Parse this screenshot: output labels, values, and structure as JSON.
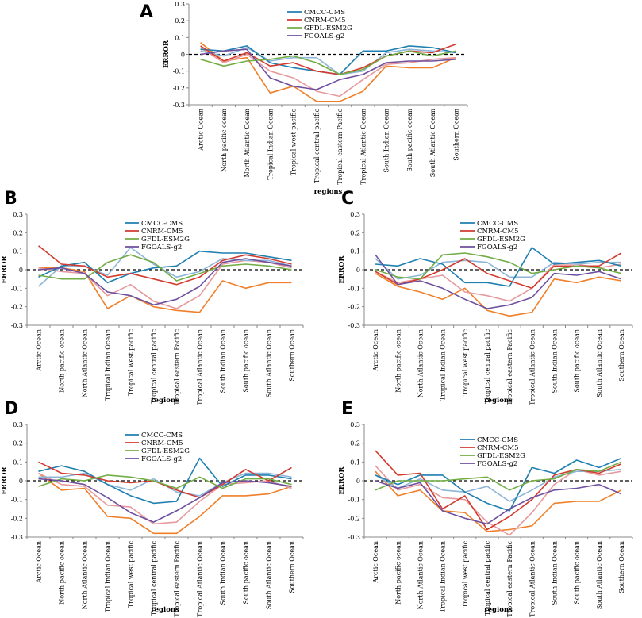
{
  "chart_data": [
    {
      "panel": "A",
      "type": "line",
      "xlabel": "regions",
      "ylabel": "ERROR",
      "ylim": [
        -0.3,
        0.3
      ],
      "yticks": [
        "0.3",
        "0.2",
        "0.1",
        "0",
        "-0.1",
        "-0.2",
        "-0.3"
      ],
      "categories": [
        "Arctic Ocean",
        "North pacific ocean",
        "North Atlantic Ocean",
        "Tropical Indian Ocean",
        "Tropical west pacific",
        "Tropical central pacific",
        "Tropical eastern Pacific",
        "Tropical Atlantic Ocean",
        "South Indian Ocean",
        "South pacific ocean",
        "South Atlantic Ocean",
        "Southern Ocean"
      ],
      "legend": [
        "CMCC-CMS",
        "CNRM-CM5",
        "GFDL-ESM2G",
        "FGOALS-g2"
      ],
      "series": [
        {
          "name": "CMCC-CMS",
          "color": "#1f7fb0",
          "values": [
            0.03,
            0.02,
            0.05,
            -0.05,
            -0.08,
            -0.1,
            -0.12,
            0.02,
            0.02,
            0.05,
            0.04,
            0.01
          ]
        },
        {
          "name": "CNRM-CM5",
          "color": "#d33b30",
          "values": [
            0.05,
            -0.04,
            0.01,
            -0.07,
            -0.05,
            -0.1,
            -0.12,
            -0.08,
            -0.01,
            0.02,
            0.01,
            0.06
          ]
        },
        {
          "name": "GFDL-ESM2G",
          "color": "#72ad45",
          "values": [
            -0.03,
            -0.07,
            -0.04,
            -0.03,
            -0.01,
            -0.05,
            -0.12,
            -0.09,
            -0.01,
            0.02,
            -0.01,
            0.02
          ]
        },
        {
          "name": "FGOALS-g2",
          "color": "#6e4f9e",
          "values": [
            0.0,
            0.02,
            0.03,
            -0.14,
            -0.19,
            -0.21,
            -0.15,
            -0.12,
            -0.05,
            -0.04,
            -0.04,
            -0.03
          ]
        },
        {
          "name": "",
          "color": "#f07f2a",
          "values": [
            0.07,
            -0.04,
            -0.02,
            -0.23,
            -0.19,
            -0.28,
            -0.28,
            -0.22,
            -0.07,
            -0.08,
            -0.08,
            -0.02
          ]
        },
        {
          "name": "",
          "color": "#e69a9e",
          "values": [
            0.04,
            -0.05,
            0.0,
            -0.1,
            -0.14,
            -0.22,
            -0.25,
            -0.15,
            -0.06,
            -0.05,
            -0.03,
            -0.02
          ]
        },
        {
          "name": "",
          "color": "#8eb6d9",
          "values": [
            0.02,
            -0.01,
            0.04,
            -0.04,
            -0.02,
            -0.02,
            -0.12,
            -0.1,
            0.01,
            0.03,
            0.02,
            0.01
          ]
        }
      ]
    },
    {
      "panel": "B",
      "type": "line",
      "xlabel": "regions",
      "ylabel": "ERROR",
      "ylim": [
        -0.3,
        0.3
      ],
      "yticks": [
        "0.3",
        "0.2",
        "0.1",
        "0",
        "-0.1",
        "-0.2",
        "-0.3"
      ],
      "categories": [
        "Arctic Ocean",
        "North pacific ocean",
        "North Atlantic Ocean",
        "Tropical Indian Ocean",
        "Tropical west pacific",
        "Tropical central pacific",
        "Tropical eastern Pacific",
        "Tropical Atlantic Ocean",
        "South Indian Ocean",
        "South pacific ocean",
        "South Atlantic Ocean",
        "Southern Ocean"
      ],
      "legend": [
        "CMCC-CMS",
        "CNRM-CM5",
        "GFDL-ESM2G",
        "FGOALS-g2"
      ],
      "series": [
        {
          "name": "CMCC-CMS",
          "color": "#1f7fb0",
          "values": [
            -0.04,
            0.02,
            0.04,
            -0.07,
            -0.02,
            0.01,
            0.02,
            0.1,
            0.09,
            0.09,
            0.07,
            0.05
          ]
        },
        {
          "name": "CNRM-CM5",
          "color": "#d33b30",
          "values": [
            0.13,
            0.03,
            0.02,
            -0.04,
            -0.02,
            -0.05,
            -0.08,
            -0.04,
            0.05,
            0.08,
            0.06,
            0.03
          ]
        },
        {
          "name": "GFDL-ESM2G",
          "color": "#72ad45",
          "values": [
            -0.03,
            -0.05,
            -0.05,
            0.04,
            0.08,
            0.04,
            -0.06,
            -0.02,
            0.02,
            0.03,
            0.02,
            0.0
          ]
        },
        {
          "name": "FGOALS-g2",
          "color": "#6e4f9e",
          "values": [
            0.0,
            0.01,
            -0.02,
            -0.12,
            -0.14,
            -0.19,
            -0.16,
            -0.09,
            0.04,
            0.06,
            0.04,
            0.02
          ]
        },
        {
          "name": "",
          "color": "#f07f2a",
          "values": [
            0.01,
            0.01,
            -0.01,
            -0.21,
            -0.14,
            -0.2,
            -0.22,
            -0.23,
            -0.06,
            -0.1,
            -0.07,
            -0.07
          ]
        },
        {
          "name": "",
          "color": "#e69a9e",
          "values": [
            0.01,
            -0.01,
            -0.02,
            -0.14,
            -0.08,
            -0.17,
            -0.21,
            -0.14,
            0.03,
            0.05,
            0.04,
            0.01
          ]
        },
        {
          "name": "",
          "color": "#8eb6d9",
          "values": [
            -0.09,
            0.02,
            0.02,
            -0.03,
            0.12,
            0.03,
            -0.04,
            -0.01,
            0.06,
            0.05,
            0.05,
            0.02
          ]
        }
      ]
    },
    {
      "panel": "C",
      "type": "line",
      "xlabel": "regions",
      "ylabel": "ERROR",
      "ylim": [
        -0.3,
        0.3
      ],
      "yticks": [
        "0.3",
        "0.2",
        "0.1",
        "0",
        "-0.1",
        "-0.2",
        "-0.3"
      ],
      "categories": [
        "Arctic Ocean",
        "North pacific ocean",
        "North Atlantic Ocean",
        "Tropical Indian Ocean",
        "Tropical west pacific",
        "Tropical central pacific",
        "Tropical eastern Pacific",
        "Tropical Atlantic Ocean",
        "South Indian Ocean",
        "South pacific ocean",
        "South Atlantic Ocean",
        "Southern Ocean"
      ],
      "legend": [
        "CMCC-CMS",
        "CNRM-CM5",
        "GFDL-ESM2G",
        "FGOALS-g2"
      ],
      "series": [
        {
          "name": "CMCC-CMS",
          "color": "#1f7fb0",
          "values": [
            0.03,
            0.02,
            0.06,
            0.03,
            -0.07,
            -0.07,
            -0.09,
            0.12,
            0.03,
            0.04,
            0.05,
            0.02
          ]
        },
        {
          "name": "CNRM-CM5",
          "color": "#d33b30",
          "values": [
            -0.01,
            -0.08,
            -0.05,
            0.0,
            0.06,
            -0.02,
            -0.06,
            -0.1,
            0.02,
            0.02,
            0.02,
            0.09
          ]
        },
        {
          "name": "GFDL-ESM2G",
          "color": "#72ad45",
          "values": [
            0.0,
            -0.04,
            -0.05,
            0.08,
            0.09,
            0.07,
            0.04,
            -0.02,
            0.0,
            0.02,
            0.01,
            -0.02
          ]
        },
        {
          "name": "FGOALS-g2",
          "color": "#6e4f9e",
          "values": [
            0.08,
            -0.08,
            -0.06,
            -0.1,
            -0.16,
            -0.21,
            -0.19,
            -0.15,
            -0.02,
            -0.03,
            -0.01,
            -0.05
          ]
        },
        {
          "name": "",
          "color": "#f07f2a",
          "values": [
            -0.02,
            -0.09,
            -0.12,
            -0.16,
            -0.1,
            -0.22,
            -0.25,
            -0.23,
            -0.05,
            -0.07,
            -0.04,
            -0.06
          ]
        },
        {
          "name": "",
          "color": "#e69a9e",
          "values": [
            -0.01,
            -0.07,
            -0.05,
            -0.03,
            -0.12,
            -0.14,
            -0.17,
            -0.1,
            0.03,
            0.03,
            0.01,
            0.03
          ]
        },
        {
          "name": "",
          "color": "#8eb6d9",
          "values": [
            0.06,
            -0.05,
            -0.03,
            0.04,
            0.05,
            0.04,
            -0.04,
            -0.04,
            0.04,
            0.03,
            0.04,
            0.04
          ]
        }
      ]
    },
    {
      "panel": "D",
      "type": "line",
      "xlabel": "regions",
      "ylabel": "ERROR",
      "ylim": [
        -0.3,
        0.3
      ],
      "yticks": [
        "0.3",
        "0.2",
        "0.1",
        "0",
        "-0.1",
        "-0.2",
        "-0.3"
      ],
      "categories": [
        "Arctic Ocean",
        "North pacific ocean",
        "North Atlantic Ocean",
        "Tropical Indian Ocean",
        "Tropical west pacific",
        "Tropical central pacific",
        "Tropical eastern Pacific",
        "Tropical Atlantic Ocean",
        "South Indian Ocean",
        "South pacific ocean",
        "South Atlantic Ocean",
        "Southern Ocean"
      ],
      "legend": [
        "CMCC-CMS",
        "CNRM-CM5",
        "GFDL-ESM2G",
        "FGOALS-g2"
      ],
      "series": [
        {
          "name": "CMCC-CMS",
          "color": "#1f7fb0",
          "values": [
            0.05,
            0.08,
            0.05,
            -0.02,
            -0.08,
            -0.12,
            -0.11,
            0.12,
            -0.03,
            0.03,
            0.03,
            0.01
          ]
        },
        {
          "name": "CNRM-CM5",
          "color": "#d33b30",
          "values": [
            0.1,
            0.04,
            0.03,
            0.0,
            -0.01,
            0.0,
            -0.05,
            -0.09,
            -0.02,
            0.06,
            0.0,
            0.07
          ]
        },
        {
          "name": "GFDL-ESM2G",
          "color": "#72ad45",
          "values": [
            -0.03,
            0.01,
            0.0,
            0.03,
            0.02,
            0.0,
            -0.04,
            0.02,
            -0.04,
            0.01,
            0.01,
            -0.02
          ]
        },
        {
          "name": "FGOALS-g2",
          "color": "#6e4f9e",
          "values": [
            0.01,
            0.0,
            -0.02,
            -0.09,
            -0.17,
            -0.22,
            -0.16,
            -0.09,
            -0.01,
            0.0,
            -0.01,
            -0.03
          ]
        },
        {
          "name": "",
          "color": "#f07f2a",
          "values": [
            0.04,
            -0.05,
            -0.04,
            -0.19,
            -0.2,
            -0.28,
            -0.28,
            -0.19,
            -0.08,
            -0.08,
            -0.07,
            -0.03
          ]
        },
        {
          "name": "",
          "color": "#e69a9e",
          "values": [
            0.04,
            -0.02,
            -0.03,
            -0.13,
            -0.14,
            -0.23,
            -0.22,
            -0.11,
            -0.02,
            -0.01,
            0.0,
            -0.04
          ]
        },
        {
          "name": "",
          "color": "#8eb6d9",
          "values": [
            0.02,
            0.02,
            0.04,
            -0.02,
            -0.05,
            0.01,
            -0.06,
            -0.08,
            -0.01,
            0.04,
            0.04,
            0.02
          ]
        }
      ]
    },
    {
      "panel": "E",
      "type": "line",
      "xlabel": "regions",
      "ylabel": "ERROR",
      "ylim": [
        -0.3,
        0.3
      ],
      "yticks": [
        "0.3",
        "0.2",
        "0.1",
        "0",
        "-0.1",
        "-0.2",
        "-0.3"
      ],
      "categories": [
        "Arctic Ocean",
        "North pacific ocean",
        "North Atlantic Ocean",
        "Tropical Indian Ocean",
        "Tropical west pacific",
        "Tropical central pacific",
        "Tropical eastern Pacific",
        "Tropical Atlantic Ocean",
        "South Indian Ocean",
        "South pacific ocean",
        "South Atlantic Ocean",
        "Southern Ocean"
      ],
      "legend": [
        "CMCC-CMS",
        "CNRM-CM5",
        "GFDL-ESM2G",
        "FGOALS-g2"
      ],
      "series": [
        {
          "name": "CMCC-CMS",
          "color": "#1f7fb0",
          "values": [
            0.03,
            -0.02,
            0.03,
            0.03,
            -0.06,
            -0.12,
            -0.16,
            0.07,
            0.04,
            0.11,
            0.07,
            0.12
          ]
        },
        {
          "name": "CNRM-CM5",
          "color": "#d33b30",
          "values": [
            0.16,
            0.03,
            0.04,
            -0.15,
            -0.08,
            -0.26,
            -0.19,
            -0.1,
            0.03,
            0.06,
            0.04,
            0.09
          ]
        },
        {
          "name": "GFDL-ESM2G",
          "color": "#72ad45",
          "values": [
            -0.05,
            0.0,
            0.0,
            0.0,
            0.01,
            0.02,
            -0.05,
            0.0,
            0.01,
            0.06,
            0.05,
            0.1
          ]
        },
        {
          "name": "FGOALS-g2",
          "color": "#6e4f9e",
          "values": [
            0.0,
            -0.04,
            -0.01,
            -0.16,
            -0.2,
            -0.23,
            -0.15,
            -0.09,
            -0.05,
            -0.04,
            -0.02,
            -0.07
          ]
        },
        {
          "name": "",
          "color": "#f07f2a",
          "values": [
            0.05,
            -0.08,
            -0.05,
            -0.16,
            -0.17,
            -0.27,
            -0.26,
            -0.24,
            -0.12,
            -0.11,
            -0.11,
            -0.05
          ]
        },
        {
          "name": "",
          "color": "#e69a9e",
          "values": [
            0.08,
            -0.05,
            -0.02,
            -0.09,
            -0.1,
            -0.22,
            -0.29,
            -0.17,
            -0.02,
            0.06,
            0.03,
            0.05
          ]
        },
        {
          "name": "",
          "color": "#8eb6d9",
          "values": [
            0.03,
            -0.04,
            0.01,
            -0.05,
            -0.06,
            -0.03,
            -0.11,
            -0.05,
            0.02,
            0.05,
            0.05,
            0.06
          ]
        }
      ]
    }
  ]
}
